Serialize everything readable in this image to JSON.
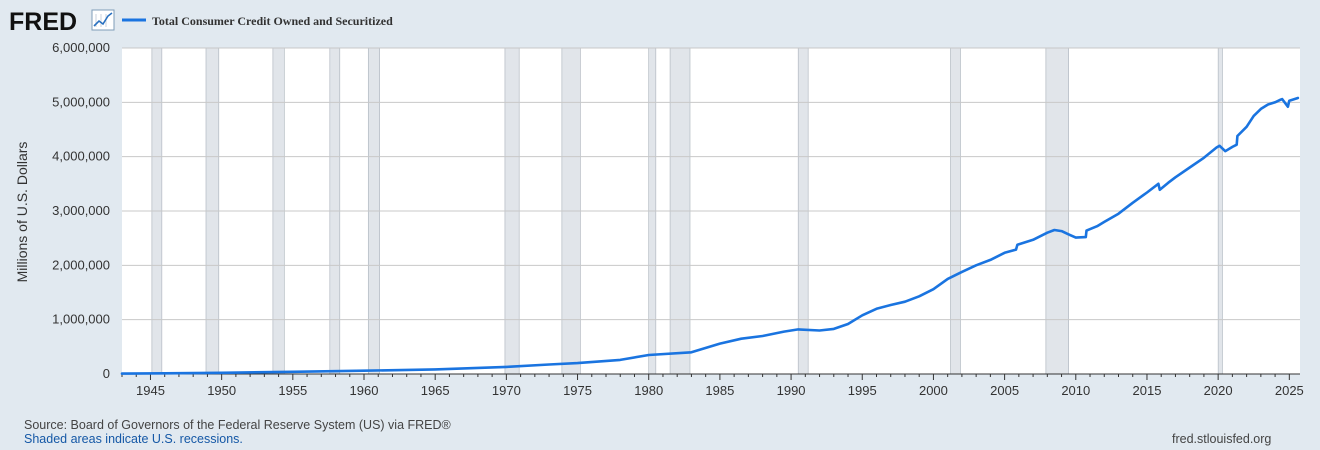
{
  "header": {
    "logo_text": "FRED",
    "logo_icon": "line-chart-icon",
    "legend_label": "Total Consumer Credit Owned and Securitized"
  },
  "colors": {
    "series": "#1a74e0",
    "plot_background": "#ffffff",
    "page_background": "#e1e9f0",
    "recession_shade": "#e1e5ea",
    "gridline": "#c8c8c8"
  },
  "footer": {
    "source": "Source: Board of Governors of the Federal Reserve System (US) via FRED®",
    "note": "Shaded areas indicate U.S. recessions.",
    "site": "fred.stlouisfed.org"
  },
  "chart_data": {
    "type": "line",
    "title": "",
    "xlabel": "",
    "ylabel": "Millions of U.S. Dollars",
    "xlim": [
      1943.0,
      2025.75
    ],
    "ylim": [
      0,
      6000000
    ],
    "grid": true,
    "legend_position": "top-left",
    "x_ticks": [
      1945,
      1950,
      1955,
      1960,
      1965,
      1970,
      1975,
      1980,
      1985,
      1990,
      1995,
      2000,
      2005,
      2010,
      2015,
      2020,
      2025
    ],
    "y_ticks": [
      {
        "value": 0,
        "label": "0"
      },
      {
        "value": 1000000,
        "label": "1,000,000"
      },
      {
        "value": 2000000,
        "label": "2,000,000"
      },
      {
        "value": 3000000,
        "label": "3,000,000"
      },
      {
        "value": 4000000,
        "label": "4,000,000"
      },
      {
        "value": 5000000,
        "label": "5,000,000"
      },
      {
        "value": 6000000,
        "label": "6,000,000"
      }
    ],
    "recessions": [
      [
        1945.1,
        1945.8
      ],
      [
        1948.9,
        1949.8
      ],
      [
        1953.6,
        1954.4
      ],
      [
        1957.6,
        1958.3
      ],
      [
        1960.3,
        1961.1
      ],
      [
        1969.9,
        1970.9
      ],
      [
        1973.9,
        1975.2
      ],
      [
        1980.0,
        1980.5
      ],
      [
        1981.5,
        1982.9
      ],
      [
        1990.5,
        1991.2
      ],
      [
        2001.2,
        2001.9
      ],
      [
        2007.9,
        2009.5
      ],
      [
        2020.0,
        2020.3
      ]
    ],
    "series": [
      {
        "name": "Total Consumer Credit Owned and Securitized",
        "x": [
          1943.0,
          1946,
          1950,
          1955,
          1960,
          1965,
          1970,
          1973,
          1975,
          1978,
          1980,
          1983,
          1985,
          1986.5,
          1988,
          1989.5,
          1990.5,
          1992,
          1993,
          1994,
          1995,
          1996,
          1997,
          1998,
          1999,
          2000,
          2001,
          2002,
          2003,
          2004,
          2005,
          2005.8,
          2005.9,
          2007,
          2008,
          2008.5,
          2009,
          2009.5,
          2010,
          2010.7,
          2010.75,
          2011.5,
          2012,
          2013,
          2014,
          2015,
          2015.8,
          2015.9,
          2016.5,
          2017,
          2018,
          2019,
          2019.9,
          2020.1,
          2020.5,
          2021,
          2021.3,
          2021.35,
          2022,
          2022.5,
          2023,
          2023.5,
          2024,
          2024.4,
          2024.5,
          2024.9,
          2025.0,
          2025.6
        ],
        "y": [
          8000,
          12000,
          22000,
          40000,
          60000,
          85000,
          130000,
          175000,
          200000,
          260000,
          350000,
          400000,
          560000,
          650000,
          700000,
          780000,
          820000,
          800000,
          830000,
          920000,
          1080000,
          1200000,
          1270000,
          1330000,
          1430000,
          1560000,
          1750000,
          1880000,
          2000000,
          2100000,
          2230000,
          2290000,
          2380000,
          2470000,
          2600000,
          2650000,
          2630000,
          2570000,
          2510000,
          2520000,
          2640000,
          2720000,
          2800000,
          2950000,
          3150000,
          3340000,
          3500000,
          3390000,
          3520000,
          3620000,
          3800000,
          3980000,
          4170000,
          4200000,
          4100000,
          4180000,
          4220000,
          4380000,
          4550000,
          4750000,
          4880000,
          4960000,
          5000000,
          5050000,
          5060000,
          4920000,
          5030000,
          5080000
        ]
      }
    ]
  }
}
